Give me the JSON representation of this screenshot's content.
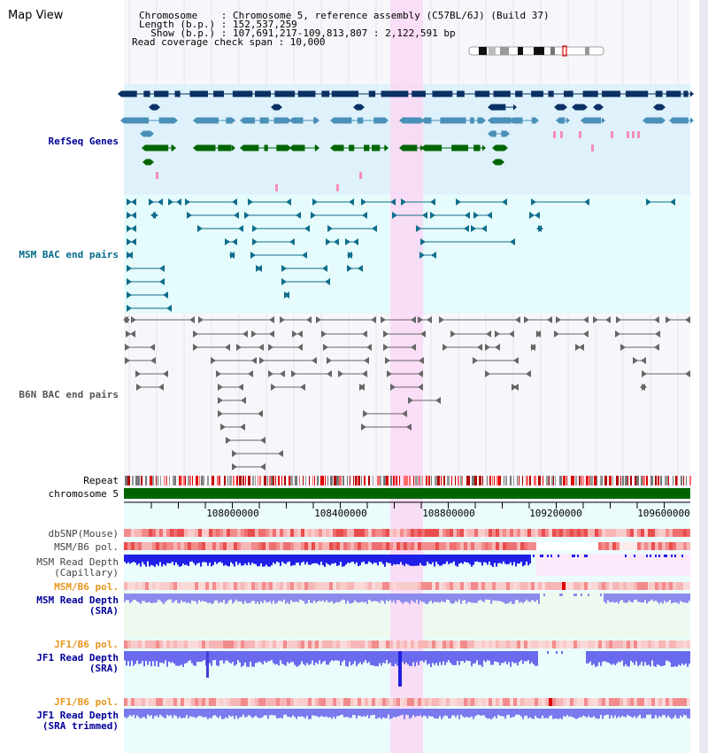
{
  "header": {
    "title": "Map View",
    "info_lines": [
      "Chromosome    : Chromosome 5, reference assembly (C57BL/6J) (Build 37)",
      "Length (b.p.) : 152,537,259",
      "  Show (b.p.) : 107,691,217-109,813,807 : 2,122,591 bp",
      "Read coverage check span : 10,000"
    ]
  },
  "tracks": {
    "refseq": "RefSeq Genes",
    "msm_bac": "MSM BAC end pairs",
    "b6n_bac": "B6N BAC end pairs",
    "repeat": "Repeat",
    "chromosome": "chromosome 5",
    "dbsnp": "dbSNP(Mouse)",
    "msm_pol1": "MSM/B6 pol.",
    "msm_depth_cap_1": "MSM Read Depth",
    "msm_depth_cap_2": "(Capillary)",
    "msm_pol2": "MSM/B6 pol.",
    "msm_depth_sra_1": "MSM Read Depth",
    "msm_depth_sra_2": "(SRA)",
    "jf1_pol1": "JF1/B6 pol.",
    "jf1_depth_1": "JF1 Read Depth",
    "jf1_depth_2": "(SRA)",
    "jf1_pol2": "JF1/B6 pol.",
    "jf1_trim_1": "JF1 Read Depth",
    "jf1_trim_2": "(SRA trimmed)"
  },
  "axis": {
    "ticks": [
      "108000000",
      "108400000",
      "108800000",
      "109200000",
      "109600000"
    ]
  },
  "colors": {
    "refseq_bg": "#dff2fb",
    "bac_bg": "#e6fbfb",
    "highlight": "#f9d9f5",
    "navy": "#0a3064",
    "steel": "#4a90b8",
    "green": "#006600",
    "teal": "#0e6e8c",
    "label_blue": "#000099",
    "label_teal": "#006a8a",
    "label_orange": "#e8961e",
    "depth_blue": "#1f1fe8",
    "depth_light": "#7a7aee",
    "chrom_green": "#006400"
  }
}
